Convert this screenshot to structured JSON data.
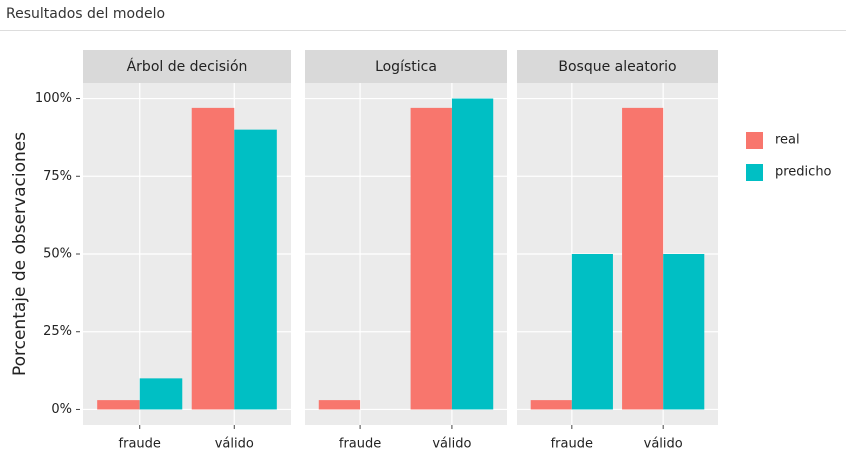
{
  "header": {
    "title": "Resultados del modelo"
  },
  "chart_data": {
    "type": "bar",
    "ylabel": "Porcentaje de observaciones",
    "categories": [
      "fraude",
      "válido"
    ],
    "series": [
      {
        "name": "real",
        "color": "#f8766d"
      },
      {
        "name": "predicho",
        "color": "#00bfc4"
      }
    ],
    "facets": [
      {
        "title": "Árbol de decisión",
        "values": [
          [
            3,
            97
          ],
          [
            10,
            90
          ]
        ]
      },
      {
        "title": "Logística",
        "values": [
          [
            3,
            97
          ],
          [
            0,
            100
          ]
        ]
      },
      {
        "title": "Bosque aleatorio",
        "values": [
          [
            3,
            97
          ],
          [
            50,
            50
          ]
        ]
      }
    ],
    "ylim": [
      -5,
      105
    ],
    "yticks": [
      {
        "value": 0,
        "label": "0%"
      },
      {
        "value": 25,
        "label": "25%"
      },
      {
        "value": 50,
        "label": "50%"
      },
      {
        "value": 75,
        "label": "75%"
      },
      {
        "value": 100,
        "label": "100%"
      }
    ],
    "grid": true,
    "legend": "right"
  }
}
